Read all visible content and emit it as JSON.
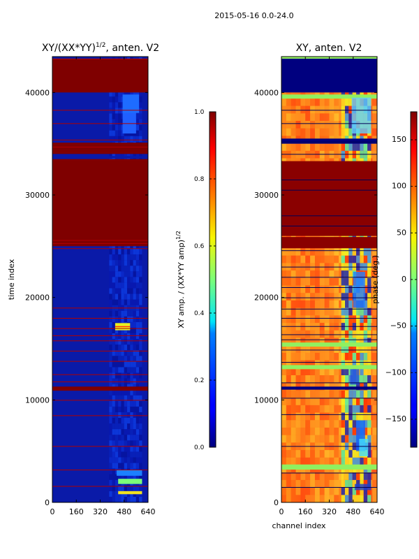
{
  "figure": {
    "suptitle": "2015-05-16 0.0-24.0"
  },
  "chart_data": [
    {
      "type": "heatmap",
      "title": "XY/(XX*YY)",
      "title_sup": "1/2",
      "title_suffix": ", anten. V2",
      "xlabel": "",
      "ylabel": "time index",
      "xlim": [
        0,
        640
      ],
      "ylim": [
        0,
        43500
      ],
      "xticks": [
        0,
        160,
        320,
        480,
        640
      ],
      "yticks": [
        0,
        10000,
        20000,
        30000,
        40000
      ],
      "colormap": "jet",
      "colorbar": {
        "label": "XY amp. / (XX*YY amp)",
        "label_sup": "1/2",
        "range": [
          0.0,
          1.0
        ],
        "ticks": [
          0.0,
          0.2,
          0.4,
          0.6,
          0.8,
          1.0
        ],
        "tick_labels": [
          "0.0",
          "0.2",
          "0.4",
          "0.6",
          "0.8",
          "1.0"
        ]
      }
    },
    {
      "type": "heatmap",
      "title": "XY, anten. V2",
      "xlabel": "channel index",
      "ylabel": "",
      "xlim": [
        0,
        640
      ],
      "ylim": [
        0,
        43500
      ],
      "xticks": [
        0,
        160,
        320,
        480,
        640
      ],
      "yticks": [
        0,
        10000,
        20000,
        30000,
        40000
      ],
      "colormap": "jet",
      "colorbar": {
        "label": "phase (deg.)",
        "range": [
          -180,
          180
        ],
        "ticks": [
          -150,
          -100,
          -50,
          0,
          50,
          100,
          150
        ],
        "tick_labels": [
          "−150",
          "−100",
          "−50",
          "0",
          "50",
          "100",
          "150"
        ]
      }
    }
  ]
}
